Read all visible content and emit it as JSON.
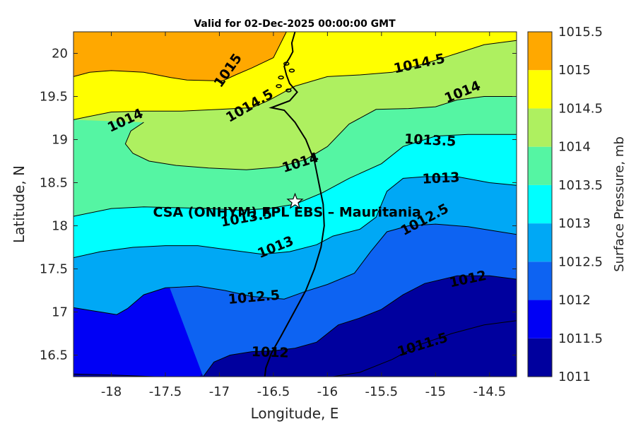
{
  "title": "Valid for 02-Dec-2025 00:00:00 GMT",
  "station_label": "CSA (ONHYM) FPL EBS  – Mauritania",
  "chart_data": {
    "type": "contourf",
    "xlabel": "Longitude, E",
    "ylabel": "Latitude, N",
    "xlim": [
      -18.35,
      -14.25
    ],
    "ylim": [
      16.25,
      20.25
    ],
    "xticks": [
      -18,
      -17.5,
      -17,
      -16.5,
      -16,
      -15.5,
      -15,
      -14.5
    ],
    "xtick_labels": [
      "-18",
      "-17.5",
      "-17",
      "-16.5",
      "-16",
      "-15.5",
      "-15",
      "-14.5"
    ],
    "yticks": [
      16.5,
      17,
      17.5,
      18,
      18.5,
      19,
      19.5,
      20
    ],
    "ytick_labels": [
      "16.5",
      "17",
      "17.5",
      "18",
      "18.5",
      "19",
      "19.5",
      "20"
    ],
    "station": {
      "lon": -16.3,
      "lat": 18.28,
      "marker": "star"
    },
    "colorbar": {
      "label": "Surface Pressure, mb",
      "levels": [
        1011,
        1011.5,
        1012,
        1012.5,
        1013,
        1013.5,
        1014,
        1014.5,
        1015,
        1015.5
      ],
      "tick_labels": [
        "1011",
        "1011.5",
        "1012",
        "1012.5",
        "1013",
        "1013.5",
        "1014",
        "1014.5",
        "1015",
        "1015.5"
      ],
      "colors": [
        "#00009e",
        "#0000f5",
        "#0d63f2",
        "#00a8f5",
        "#00ffff",
        "#55f5a3",
        "#aef060",
        "#ffff00",
        "#ffa800",
        "#ff5b00"
      ]
    },
    "contours": [
      {
        "level": 1015,
        "points": [
          [
            -18.35,
            19.73
          ],
          [
            -18.2,
            19.78
          ],
          [
            -18.0,
            19.8
          ],
          [
            -17.7,
            19.78
          ],
          [
            -17.45,
            19.72
          ],
          [
            -17.3,
            19.69
          ],
          [
            -16.97,
            19.68
          ],
          [
            -16.85,
            19.75
          ],
          [
            -16.7,
            19.83
          ],
          [
            -16.5,
            19.95
          ],
          [
            -16.38,
            20.25
          ]
        ]
      },
      {
        "level": 1014.5,
        "points": [
          [
            -18.35,
            19.23
          ],
          [
            -18.2,
            19.27
          ],
          [
            -18.0,
            19.32
          ],
          [
            -17.7,
            19.33
          ],
          [
            -17.35,
            19.33
          ],
          [
            -17.0,
            19.35
          ],
          [
            -16.7,
            19.37
          ],
          [
            -16.55,
            19.45
          ],
          [
            -16.3,
            19.62
          ],
          [
            -16.0,
            19.73
          ],
          [
            -15.7,
            19.75
          ],
          [
            -15.4,
            19.78
          ],
          [
            -15.1,
            19.88
          ],
          [
            -14.8,
            20.0
          ],
          [
            -14.55,
            20.1
          ],
          [
            -14.25,
            20.15
          ]
        ]
      },
      {
        "level": 1014,
        "points": [
          [
            -17.7,
            19.2
          ],
          [
            -17.82,
            19.1
          ],
          [
            -17.87,
            18.95
          ],
          [
            -17.8,
            18.84
          ],
          [
            -17.65,
            18.75
          ],
          [
            -17.4,
            18.7
          ],
          [
            -17.1,
            18.67
          ],
          [
            -16.75,
            18.65
          ],
          [
            -16.45,
            18.68
          ],
          [
            -16.2,
            18.77
          ],
          [
            -16.0,
            18.92
          ],
          [
            -15.8,
            19.18
          ],
          [
            -15.55,
            19.35
          ],
          [
            -15.25,
            19.36
          ],
          [
            -15.0,
            19.38
          ],
          [
            -14.8,
            19.46
          ],
          [
            -14.55,
            19.5
          ],
          [
            -14.25,
            19.5
          ]
        ]
      },
      {
        "level": 1013.5,
        "points": [
          [
            -18.35,
            18.11
          ],
          [
            -18.0,
            18.2
          ],
          [
            -17.7,
            18.22
          ],
          [
            -17.4,
            18.21
          ],
          [
            -17.1,
            18.2
          ],
          [
            -16.8,
            18.18
          ],
          [
            -16.55,
            18.2
          ],
          [
            -16.3,
            18.25
          ],
          [
            -16.05,
            18.38
          ],
          [
            -15.8,
            18.55
          ],
          [
            -15.5,
            18.72
          ],
          [
            -15.3,
            18.92
          ],
          [
            -15.0,
            19.04
          ],
          [
            -14.7,
            19.06
          ],
          [
            -14.25,
            19.06
          ]
        ]
      },
      {
        "level": 1013,
        "points": [
          [
            -18.35,
            17.63
          ],
          [
            -18.1,
            17.7
          ],
          [
            -17.8,
            17.75
          ],
          [
            -17.5,
            17.77
          ],
          [
            -17.2,
            17.77
          ],
          [
            -16.9,
            17.72
          ],
          [
            -16.6,
            17.67
          ],
          [
            -16.35,
            17.7
          ],
          [
            -16.1,
            17.78
          ],
          [
            -15.95,
            17.88
          ],
          [
            -15.7,
            17.96
          ],
          [
            -15.55,
            18.1
          ],
          [
            -15.45,
            18.4
          ],
          [
            -15.3,
            18.55
          ],
          [
            -15.1,
            18.57
          ],
          [
            -14.8,
            18.57
          ],
          [
            -14.5,
            18.5
          ],
          [
            -14.25,
            18.47
          ]
        ]
      },
      {
        "level": 1012.5,
        "points": [
          [
            -18.35,
            17.05
          ],
          [
            -18.1,
            17.0
          ],
          [
            -17.95,
            16.97
          ],
          [
            -17.85,
            17.04
          ],
          [
            -17.7,
            17.2
          ],
          [
            -17.5,
            17.28
          ],
          [
            -17.2,
            17.3
          ],
          [
            -16.95,
            17.25
          ],
          [
            -16.7,
            17.18
          ],
          [
            -16.4,
            17.15
          ],
          [
            -16.2,
            17.24
          ],
          [
            -16.0,
            17.32
          ],
          [
            -15.75,
            17.45
          ],
          [
            -15.6,
            17.7
          ],
          [
            -15.45,
            17.93
          ],
          [
            -15.25,
            18.0
          ],
          [
            -15.0,
            18.02
          ],
          [
            -14.7,
            17.99
          ],
          [
            -14.25,
            17.9
          ]
        ]
      },
      {
        "level": 1012,
        "points": [
          [
            -17.15,
            16.25
          ],
          [
            -17.05,
            16.42
          ],
          [
            -16.9,
            16.5
          ],
          [
            -16.7,
            16.54
          ],
          [
            -16.5,
            16.55
          ],
          [
            -16.3,
            16.58
          ],
          [
            -16.1,
            16.65
          ],
          [
            -15.9,
            16.85
          ],
          [
            -15.7,
            16.93
          ],
          [
            -15.5,
            17.03
          ],
          [
            -15.3,
            17.2
          ],
          [
            -15.1,
            17.33
          ],
          [
            -14.8,
            17.42
          ],
          [
            -14.5,
            17.42
          ],
          [
            -14.25,
            17.38
          ]
        ]
      },
      {
        "level": 1011.5,
        "points": [
          [
            -18.35,
            16.28
          ],
          [
            -18.0,
            16.27
          ],
          [
            -17.6,
            16.25
          ],
          [
            -17.2,
            16.23
          ]
        ]
      },
      {
        "level": 1011.5,
        "points": [
          [
            -15.95,
            16.25
          ],
          [
            -15.7,
            16.3
          ],
          [
            -15.4,
            16.45
          ],
          [
            -15.15,
            16.62
          ],
          [
            -14.85,
            16.75
          ],
          [
            -14.55,
            16.85
          ],
          [
            -14.25,
            16.9
          ]
        ]
      }
    ],
    "contour_labels": [
      {
        "text": "1015",
        "lon": -16.92,
        "lat": 19.8,
        "angle": -55
      },
      {
        "text": "1014.5",
        "lon": -15.15,
        "lat": 19.88,
        "angle": -12
      },
      {
        "text": "1014.5",
        "lon": -16.72,
        "lat": 19.39,
        "angle": -30
      },
      {
        "text": "1014",
        "lon": -14.75,
        "lat": 19.55,
        "angle": -22
      },
      {
        "text": "1014",
        "lon": -17.87,
        "lat": 19.22,
        "angle": -25
      },
      {
        "text": "1014",
        "lon": -16.25,
        "lat": 18.73,
        "angle": -18
      },
      {
        "text": "1013.5",
        "lon": -15.05,
        "lat": 18.99,
        "angle": 3
      },
      {
        "text": "1013.5",
        "lon": -16.75,
        "lat": 18.09,
        "angle": -10
      },
      {
        "text": "1013",
        "lon": -14.95,
        "lat": 18.55,
        "angle": -3
      },
      {
        "text": "1013",
        "lon": -16.48,
        "lat": 17.75,
        "angle": -22
      },
      {
        "text": "1012.5",
        "lon": -15.1,
        "lat": 18.07,
        "angle": -28
      },
      {
        "text": "1012.5",
        "lon": -16.68,
        "lat": 17.17,
        "angle": -5
      },
      {
        "text": "1012",
        "lon": -14.7,
        "lat": 17.38,
        "angle": -12
      },
      {
        "text": "1012",
        "lon": -16.53,
        "lat": 16.53,
        "angle": 2
      },
      {
        "text": "1011.5",
        "lon": -15.12,
        "lat": 16.62,
        "angle": -17
      }
    ],
    "coastline": [
      [
        -16.58,
        16.25
      ],
      [
        -16.57,
        16.35
      ],
      [
        -16.52,
        16.52
      ],
      [
        -16.43,
        16.72
      ],
      [
        -16.33,
        16.95
      ],
      [
        -16.2,
        17.25
      ],
      [
        -16.12,
        17.5
      ],
      [
        -16.06,
        17.75
      ],
      [
        -16.03,
        18.0
      ],
      [
        -16.04,
        18.25
      ],
      [
        -16.08,
        18.5
      ],
      [
        -16.12,
        18.75
      ],
      [
        -16.2,
        19.0
      ],
      [
        -16.3,
        19.2
      ],
      [
        -16.4,
        19.34
      ],
      [
        -16.52,
        19.37
      ],
      [
        -16.35,
        19.45
      ],
      [
        -16.28,
        19.55
      ],
      [
        -16.35,
        19.65
      ],
      [
        -16.38,
        19.75
      ],
      [
        -16.4,
        19.85
      ],
      [
        -16.35,
        19.95
      ],
      [
        -16.32,
        20.02
      ],
      [
        -16.33,
        20.12
      ],
      [
        -16.3,
        20.25
      ]
    ]
  }
}
